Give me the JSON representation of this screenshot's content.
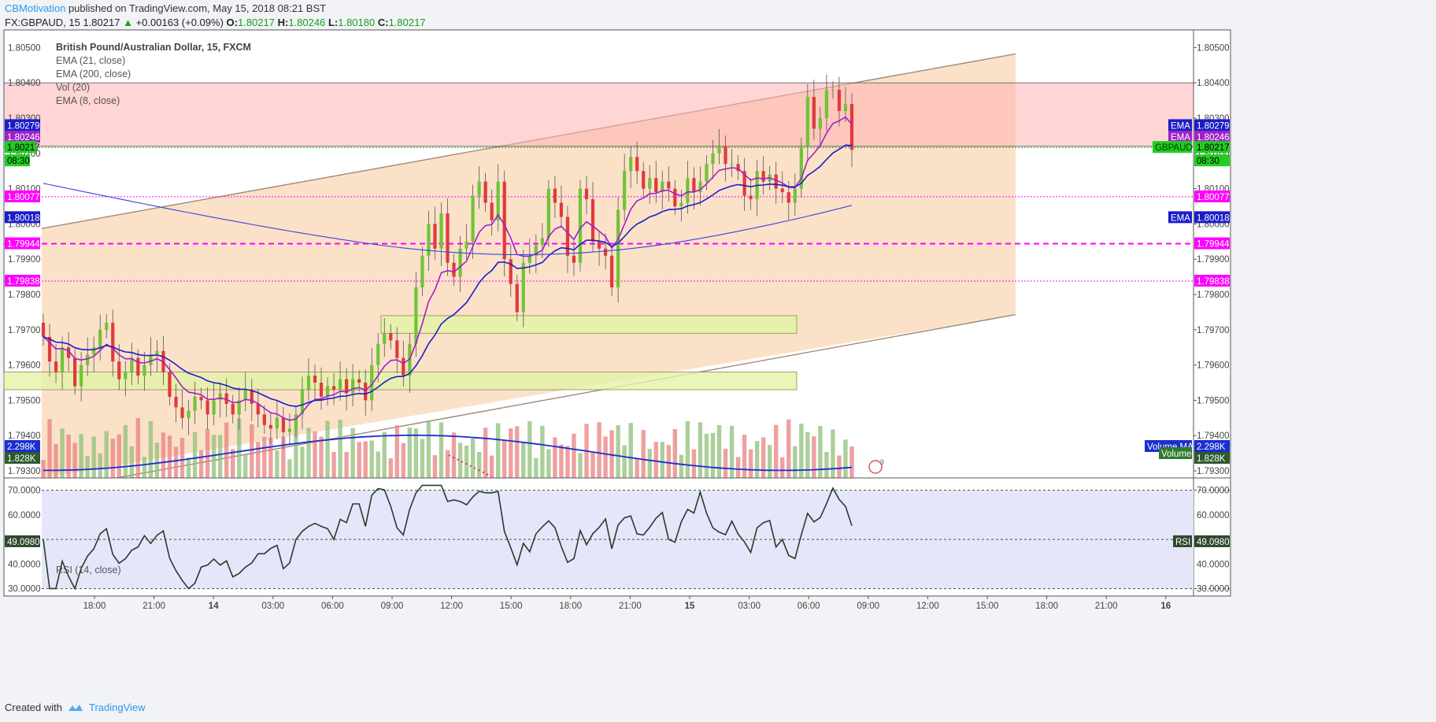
{
  "header": {
    "author": "CBMotivation",
    "published": "published on TradingView.com, May 15, 2018 08:21 BST",
    "symbol": "FX:GBPAUD, 15",
    "last": "1.80217",
    "change": "+0.00163 (+0.09%)",
    "o_label": "O:",
    "o": "1.80217",
    "h_label": "H:",
    "h": "1.80246",
    "l_label": "L:",
    "l": "1.80180",
    "c_label": "C:",
    "c": "1.80217"
  },
  "legend": {
    "title": "British Pound/Australian Dollar, 15, FXCM",
    "items": [
      "EMA (21, close)",
      "EMA (200, close)",
      "Vol (20)",
      "EMA (8, close)"
    ]
  },
  "rsi_label": "RSI (14, close)",
  "footer": {
    "created": "Created with",
    "brand": "TradingView"
  },
  "colors": {
    "up": "#6fc437",
    "down": "#e03a3a",
    "ema21": "#1c1cc8",
    "ema8": "#a020c8",
    "ema200": "#3b46d8",
    "vol_ma": "#1a2ed0",
    "channel": "#f7c89a",
    "resistance_zone": "#ffb3b3",
    "support_zone": "#e3f2a8",
    "support_zone2": "#d6f7cf",
    "magenta": "#ff00ff",
    "rsi_bg": "#e3e3fa",
    "rsi_line": "#283b2b"
  },
  "chart_data": {
    "type": "candlestick",
    "symbol": "GBPAUD",
    "interval": "15",
    "price_axis": {
      "min": 1.7928,
      "max": 1.8055,
      "ticks": [
        "1.80500",
        "1.80400",
        "1.80300",
        "1.80200",
        "1.80100",
        "1.80000",
        "1.79900",
        "1.79800",
        "1.79700",
        "1.79600",
        "1.79500",
        "1.79400",
        "1.79300"
      ]
    },
    "time_axis": {
      "ticks": [
        "18:00",
        "21:00",
        "14",
        "03:00",
        "06:00",
        "09:00",
        "12:00",
        "15:00",
        "18:00",
        "21:00",
        "15",
        "03:00",
        "06:00",
        "09:00",
        "12:00",
        "15:00",
        "18:00",
        "21:00",
        "16"
      ]
    },
    "candle_closes": [
      1.7968,
      1.7961,
      1.7958,
      1.7965,
      1.7962,
      1.7954,
      1.796,
      1.7963,
      1.7965,
      1.797,
      1.7972,
      1.7961,
      1.7956,
      1.7958,
      1.7962,
      1.7957,
      1.796,
      1.7963,
      1.7964,
      1.7958,
      1.7951,
      1.7948,
      1.7945,
      1.7947,
      1.7951,
      1.795,
      1.7946,
      1.795,
      1.7952,
      1.7949,
      1.7946,
      1.795,
      1.7953,
      1.7949,
      1.7946,
      1.7943,
      1.7942,
      1.7945,
      1.7941,
      1.7942,
      1.7946,
      1.7953,
      1.7957,
      1.7955,
      1.7951,
      1.7954,
      1.7953,
      1.7956,
      1.7952,
      1.7956,
      1.7955,
      1.795,
      1.796,
      1.7966,
      1.7969,
      1.7967,
      1.7962,
      1.7957,
      1.7966,
      1.7982,
      1.7991,
      1.8,
      1.7993,
      1.8003,
      1.7989,
      1.7985,
      1.7993,
      1.7995,
      1.8008,
      1.8012,
      1.8006,
      1.8001,
      1.8012,
      1.799,
      1.7983,
      1.7975,
      1.7989,
      1.7991,
      1.7994,
      1.7996,
      1.801,
      1.8006,
      1.8002,
      1.7991,
      1.7989,
      1.801,
      1.8007,
      1.7995,
      1.7993,
      1.7991,
      1.7982,
      1.8004,
      1.8015,
      1.8019,
      1.8015,
      1.801,
      1.8013,
      1.8009,
      1.8012,
      1.801,
      1.8005,
      1.8006,
      1.8013,
      1.8009,
      1.8012,
      1.8017,
      1.802,
      1.8022,
      1.8017,
      1.8017,
      1.8015,
      1.8008,
      1.8007,
      1.8015,
      1.8012,
      1.8014,
      1.801,
      1.8009,
      1.8006,
      1.801,
      1.8022,
      1.8036,
      1.8027,
      1.803,
      1.8038,
      1.8038,
      1.8032,
      1.8034,
      1.8021
    ],
    "ema_21_last": "1.80279",
    "ema_8_last": "1.80246",
    "ema_200_last": "1.80018",
    "last_price": "1.80217",
    "countdown": "08:30",
    "levels": [
      {
        "label": "1.80077",
        "price": 1.80077,
        "style": "dotted",
        "color": "#ff00ff"
      },
      {
        "label": "1.79944",
        "price": 1.79944,
        "style": "dashed",
        "color": "#ff00ff"
      },
      {
        "label": "1.79838",
        "price": 1.79838,
        "style": "dotted",
        "color": "#ff00ff"
      }
    ],
    "zones": [
      {
        "name": "resistance",
        "from": 1.8022,
        "to": 1.804
      },
      {
        "name": "support-upper",
        "from": 1.7969,
        "to": 1.7974
      },
      {
        "name": "support-lower",
        "from": 1.7953,
        "to": 1.7958
      }
    ],
    "volume": {
      "last": "1.828K",
      "ma": "2.298K",
      "ma_label": "Volume MA",
      "label": "Volume"
    },
    "rsi": {
      "period": 14,
      "last": "49.0980",
      "levels": [
        "70.0000",
        "60.0000",
        "50.0000",
        "40.0000",
        "30.0000"
      ],
      "min": 27,
      "max": 75
    },
    "right_tags": [
      {
        "label": "EMA",
        "value": "1.80279"
      },
      {
        "label": "EMA",
        "value": "1.80246"
      },
      {
        "label": "GBPAUD",
        "value": "1.80217"
      },
      {
        "label": "EMA",
        "value": "1.80018"
      },
      {
        "label": "Volume MA",
        "value": "2.298K"
      },
      {
        "label": "Volume",
        "value": "1.828K"
      },
      {
        "label": "RSI",
        "value": "49.0980"
      }
    ],
    "event_badge": "9"
  }
}
